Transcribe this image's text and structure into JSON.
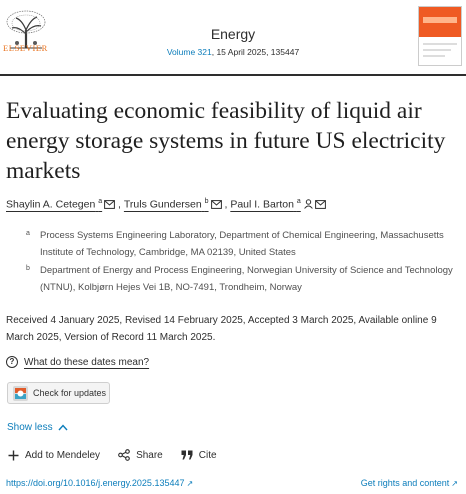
{
  "header": {
    "publisher": "ELSEVIER",
    "journal": "Energy",
    "volume_link": "Volume 321",
    "volume_rest": ", 15 April 2025, 135447",
    "cover_icon": "journal-cover-thumbnail"
  },
  "article": {
    "title": "Evaluating economic feasibility of liquid air energy storage systems in future US electricity markets",
    "authors": [
      {
        "name": "Shaylin A. Cetegen",
        "sup": "a"
      },
      {
        "name": "Truls Gundersen",
        "sup": "b"
      },
      {
        "name": "Paul I. Barton",
        "sup": "a"
      }
    ],
    "affiliations": [
      {
        "letter": "a",
        "text": "Process Systems Engineering Laboratory, Department of Chemical Engineering, Massachusetts Institute of Technology, Cambridge, MA 02139, United States"
      },
      {
        "letter": "b",
        "text": "Department of Energy and Process Engineering, Norwegian University of Science and Technology (NTNU), Kolbjørn Hejes Vei 1B, NO-7491, Trondheim, Norway"
      }
    ],
    "dates": "Received 4 January 2025, Revised 14 February 2025, Accepted 3 March 2025, Available online 9 March 2025, Version of Record 11 March 2025.",
    "dates_question": "What do these dates mean?",
    "check_updates": "Check for updates",
    "show_less": "Show less"
  },
  "actions": {
    "mendeley": "Add to Mendeley",
    "share": "Share",
    "cite": "Cite"
  },
  "footer": {
    "doi": "https://doi.org/10.1016/j.energy.2025.135447",
    "rights": "Get rights and content"
  },
  "colors": {
    "link": "#0c7dbb",
    "elsevier_orange": "#e9711c",
    "cover_orange": "#ef5a23"
  }
}
